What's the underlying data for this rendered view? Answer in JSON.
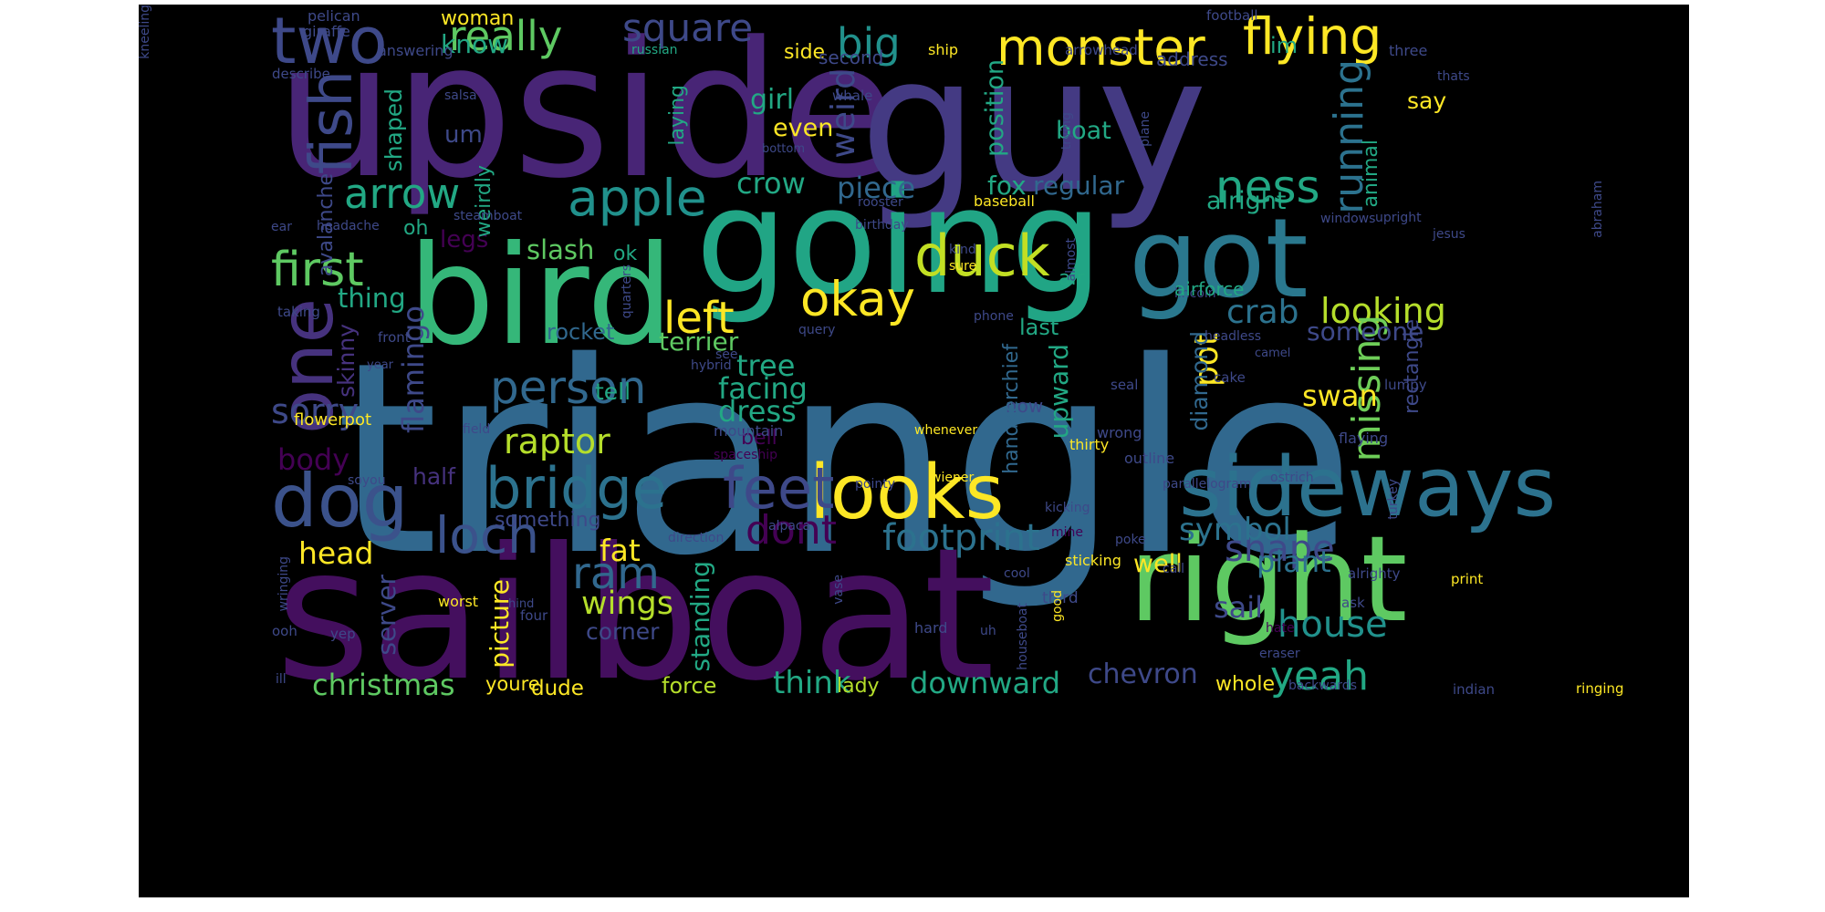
{
  "image": {
    "background_color": "#ffffff",
    "canvas_color": "#000000",
    "colormap": "viridis"
  },
  "words": [
    {
      "text": "triangle",
      "color": "#31688e",
      "vertical": false
    },
    {
      "text": "upside",
      "color": "#482576",
      "vertical": false
    },
    {
      "text": "sailboat",
      "color": "#440f5e",
      "vertical": false
    },
    {
      "text": "guy",
      "color": "#443a83",
      "vertical": false
    },
    {
      "text": "going",
      "color": "#21a585",
      "vertical": false
    },
    {
      "text": "bird",
      "color": "#35b779",
      "vertical": false
    },
    {
      "text": "got",
      "color": "#2a788e",
      "vertical": false
    },
    {
      "text": "right",
      "color": "#5ec962",
      "vertical": false
    },
    {
      "text": "sideways",
      "color": "#2c728e",
      "vertical": false
    },
    {
      "text": "looks",
      "color": "#fde725",
      "vertical": false
    },
    {
      "text": "feet",
      "color": "#3e4989",
      "vertical": false
    },
    {
      "text": "bridge",
      "color": "#2c728e",
      "vertical": false
    },
    {
      "text": "duck",
      "color": "#c2df23",
      "vertical": false
    },
    {
      "text": "left",
      "color": "#fde725",
      "vertical": false
    },
    {
      "text": "dog",
      "color": "#3b528b",
      "vertical": false
    },
    {
      "text": "one",
      "color": "#46327e",
      "vertical": true
    },
    {
      "text": "fish",
      "color": "#3e4989",
      "vertical": true
    },
    {
      "text": "two",
      "color": "#3e4989",
      "vertical": false
    },
    {
      "text": "person",
      "color": "#31688e",
      "vertical": false
    },
    {
      "text": "apple",
      "color": "#21918c",
      "vertical": false
    },
    {
      "text": "flying",
      "color": "#fde725",
      "vertical": false
    },
    {
      "text": "monster",
      "color": "#fde725",
      "vertical": false
    },
    {
      "text": "square",
      "color": "#3e4989",
      "vertical": false
    },
    {
      "text": "really",
      "color": "#5ec962",
      "vertical": false
    },
    {
      "text": "big",
      "color": "#21918c",
      "vertical": false
    },
    {
      "text": "ness",
      "color": "#22a884",
      "vertical": false
    },
    {
      "text": "okay",
      "color": "#fde725",
      "vertical": false
    },
    {
      "text": "loch",
      "color": "#3b528b",
      "vertical": false
    },
    {
      "text": "house",
      "color": "#21918c",
      "vertical": false
    },
    {
      "text": "yeah",
      "color": "#22a884",
      "vertical": false
    },
    {
      "text": "first",
      "color": "#5ec962",
      "vertical": false
    },
    {
      "text": "arrow",
      "color": "#22a884",
      "vertical": false
    },
    {
      "text": "footprint",
      "color": "#2c728e",
      "vertical": false
    },
    {
      "text": "dont",
      "color": "#440154",
      "vertical": false
    },
    {
      "text": "ram",
      "color": "#31688e",
      "vertical": false
    },
    {
      "text": "shape",
      "color": "#3e4989",
      "vertical": false
    },
    {
      "text": "looking",
      "color": "#b5de2b",
      "vertical": false
    },
    {
      "text": "crab",
      "color": "#2c728e",
      "vertical": false
    },
    {
      "text": "sorry",
      "color": "#3e4989",
      "vertical": false
    },
    {
      "text": "flamingo",
      "color": "#3e4989",
      "vertical": true
    },
    {
      "text": "weird",
      "color": "#3e4989",
      "vertical": true
    },
    {
      "text": "running",
      "color": "#2c728e",
      "vertical": true
    },
    {
      "text": "missing",
      "color": "#6ece58",
      "vertical": true
    },
    {
      "text": "pot",
      "color": "#fde725",
      "vertical": true
    },
    {
      "text": "raptor",
      "color": "#b5de2b",
      "vertical": false
    },
    {
      "text": "wings",
      "color": "#b5de2b",
      "vertical": false
    },
    {
      "text": "symbol",
      "color": "#2c728e",
      "vertical": false
    },
    {
      "text": "swan",
      "color": "#fde725",
      "vertical": false
    },
    {
      "text": "sail",
      "color": "#3e4989",
      "vertical": false
    },
    {
      "text": "think",
      "color": "#22a884",
      "vertical": false
    },
    {
      "text": "downward",
      "color": "#22a884",
      "vertical": false
    },
    {
      "text": "christmas",
      "color": "#5ec962",
      "vertical": false
    },
    {
      "text": "fat",
      "color": "#fde725",
      "vertical": false
    },
    {
      "text": "plant",
      "color": "#2c728e",
      "vertical": false
    },
    {
      "text": "tree",
      "color": "#22a884",
      "vertical": false
    },
    {
      "text": "facing",
      "color": "#22a884",
      "vertical": false
    },
    {
      "text": "dress",
      "color": "#22a884",
      "vertical": false
    },
    {
      "text": "body",
      "color": "#440154",
      "vertical": false
    },
    {
      "text": "head",
      "color": "#fde725",
      "vertical": false
    },
    {
      "text": "crow",
      "color": "#22a884",
      "vertical": false
    },
    {
      "text": "piece",
      "color": "#31688e",
      "vertical": false
    },
    {
      "text": "fox",
      "color": "#22a884",
      "vertical": false
    },
    {
      "text": "regular",
      "color": "#31688e",
      "vertical": false
    },
    {
      "text": "alright",
      "color": "#22a884",
      "vertical": false
    },
    {
      "text": "girl",
      "color": "#22a884",
      "vertical": false
    },
    {
      "text": "even",
      "color": "#fde725",
      "vertical": false
    },
    {
      "text": "thing",
      "color": "#22a884",
      "vertical": false
    },
    {
      "text": "terrier",
      "color": "#5ec962",
      "vertical": false
    },
    {
      "text": "someone",
      "color": "#3e4989",
      "vertical": false
    },
    {
      "text": "chevron",
      "color": "#3e4989",
      "vertical": false
    },
    {
      "text": "lady",
      "color": "#b5de2b",
      "vertical": false
    },
    {
      "text": "force",
      "color": "#b5de2b",
      "vertical": false
    },
    {
      "text": "dude",
      "color": "#fde725",
      "vertical": false
    },
    {
      "text": "youre",
      "color": "#fde725",
      "vertical": false
    },
    {
      "text": "whole",
      "color": "#fde725",
      "vertical": false
    },
    {
      "text": "corner",
      "color": "#3e4989",
      "vertical": false
    },
    {
      "text": "standing",
      "color": "#22a884",
      "vertical": true
    },
    {
      "text": "picture",
      "color": "#fde725",
      "vertical": true
    },
    {
      "text": "server",
      "color": "#3e4989",
      "vertical": true
    },
    {
      "text": "half",
      "color": "#46327e",
      "vertical": false
    },
    {
      "text": "skinny",
      "color": "#46327e",
      "vertical": true
    },
    {
      "text": "slash",
      "color": "#5ec962",
      "vertical": false
    },
    {
      "text": "legs",
      "color": "#440154",
      "vertical": false
    },
    {
      "text": "rocket",
      "color": "#31688e",
      "vertical": false
    },
    {
      "text": "tell",
      "color": "#22a884",
      "vertical": false
    },
    {
      "text": "bell",
      "color": "#440154",
      "vertical": false
    },
    {
      "text": "now",
      "color": "#3e4989",
      "vertical": false
    },
    {
      "text": "upward",
      "color": "#22a884",
      "vertical": true
    },
    {
      "text": "handkerchief",
      "color": "#31688e",
      "vertical": true
    },
    {
      "text": "diamond",
      "color": "#31688e",
      "vertical": true
    },
    {
      "text": "rectangle",
      "color": "#3e4989",
      "vertical": true
    },
    {
      "text": "animal",
      "color": "#22a884",
      "vertical": true
    },
    {
      "text": "well",
      "color": "#fde725",
      "vertical": false
    },
    {
      "text": "im",
      "color": "#22a884",
      "vertical": false
    },
    {
      "text": "know",
      "color": "#22a884",
      "vertical": false
    },
    {
      "text": "woman",
      "color": "#fde725",
      "vertical": false
    },
    {
      "text": "shaped",
      "color": "#22a884",
      "vertical": true
    },
    {
      "text": "weirdly",
      "color": "#22a884",
      "vertical": true
    },
    {
      "text": "um",
      "color": "#3e4989",
      "vertical": false
    },
    {
      "text": "laying",
      "color": "#22a884",
      "vertical": true
    },
    {
      "text": "position",
      "color": "#22a884",
      "vertical": true
    },
    {
      "text": "boat",
      "color": "#22a884",
      "vertical": false
    },
    {
      "text": "oh",
      "color": "#22a884",
      "vertical": false
    },
    {
      "text": "ok",
      "color": "#22a884",
      "vertical": false
    },
    {
      "text": "air",
      "color": "#22a884",
      "vertical": false
    },
    {
      "text": "last",
      "color": "#22a884",
      "vertical": false
    },
    {
      "text": "side",
      "color": "#fde725",
      "vertical": false
    },
    {
      "text": "second",
      "color": "#3e4989",
      "vertical": false
    },
    {
      "text": "address",
      "color": "#3e4989",
      "vertical": false
    },
    {
      "text": "avalanche",
      "color": "#3e4989",
      "vertical": true
    },
    {
      "text": "something",
      "color": "#3e4989",
      "vertical": false
    },
    {
      "text": "pelican",
      "color": "#3e4989",
      "vertical": false
    },
    {
      "text": "giraffe",
      "color": "#3e4989",
      "vertical": false
    },
    {
      "text": "answering",
      "color": "#3e4989",
      "vertical": false
    },
    {
      "text": "russian",
      "color": "#22a884",
      "vertical": false
    },
    {
      "text": "ship",
      "color": "#fde725",
      "vertical": false
    },
    {
      "text": "football",
      "color": "#3e4989",
      "vertical": false
    },
    {
      "text": "arrowhead",
      "color": "#3e4989",
      "vertical": false
    },
    {
      "text": "three",
      "color": "#3e4989",
      "vertical": false
    },
    {
      "text": "thats",
      "color": "#3e4989",
      "vertical": false
    },
    {
      "text": "describe",
      "color": "#3e4989",
      "vertical": false
    },
    {
      "text": "whale",
      "color": "#3e4989",
      "vertical": false
    },
    {
      "text": "salsa",
      "color": "#3e4989",
      "vertical": false
    },
    {
      "text": "say",
      "color": "#fde725",
      "vertical": false
    },
    {
      "text": "bottom",
      "color": "#3e4989",
      "vertical": false
    },
    {
      "text": "rooster",
      "color": "#3e4989",
      "vertical": false
    },
    {
      "text": "baseball",
      "color": "#fde725",
      "vertical": false
    },
    {
      "text": "steamboat",
      "color": "#3e4989",
      "vertical": false
    },
    {
      "text": "birthday",
      "color": "#3e4989",
      "vertical": false
    },
    {
      "text": "headache",
      "color": "#3e4989",
      "vertical": false
    },
    {
      "text": "ear",
      "color": "#3e4989",
      "vertical": false
    },
    {
      "text": "taking",
      "color": "#3e4989",
      "vertical": false
    },
    {
      "text": "front",
      "color": "#3e4989",
      "vertical": false
    },
    {
      "text": "kind",
      "color": "#3e4989",
      "vertical": false
    },
    {
      "text": "sure",
      "color": "#fde725",
      "vertical": false
    },
    {
      "text": "phone",
      "color": "#3e4989",
      "vertical": false
    },
    {
      "text": "query",
      "color": "#3e4989",
      "vertical": false
    },
    {
      "text": "upright",
      "color": "#3e4989",
      "vertical": false
    },
    {
      "text": "windows",
      "color": "#3e4989",
      "vertical": false
    },
    {
      "text": "jesus",
      "color": "#3e4989",
      "vertical": false
    },
    {
      "text": "lincoln",
      "color": "#3e4989",
      "vertical": false
    },
    {
      "text": "airforce",
      "color": "#22a884",
      "vertical": false
    },
    {
      "text": "headless",
      "color": "#3e4989",
      "vertical": false
    },
    {
      "text": "camel",
      "color": "#3e4989",
      "vertical": false
    },
    {
      "text": "see",
      "color": "#3e4989",
      "vertical": false
    },
    {
      "text": "year",
      "color": "#3e4989",
      "vertical": false
    },
    {
      "text": "hybrid",
      "color": "#3e4989",
      "vertical": false
    },
    {
      "text": "seal",
      "color": "#3e4989",
      "vertical": false
    },
    {
      "text": "cake",
      "color": "#3e4989",
      "vertical": false
    },
    {
      "text": "lumpy",
      "color": "#3e4989",
      "vertical": false
    },
    {
      "text": "flowerpot",
      "color": "#fde725",
      "vertical": false
    },
    {
      "text": "field",
      "color": "#3e4989",
      "vertical": false
    },
    {
      "text": "mountain",
      "color": "#3e4989",
      "vertical": false
    },
    {
      "text": "whenever",
      "color": "#fde725",
      "vertical": false
    },
    {
      "text": "wrong",
      "color": "#3e4989",
      "vertical": false
    },
    {
      "text": "thirty",
      "color": "#fde725",
      "vertical": false
    },
    {
      "text": "flaying",
      "color": "#3e4989",
      "vertical": false
    },
    {
      "text": "spaceship",
      "color": "#440154",
      "vertical": false
    },
    {
      "text": "outline",
      "color": "#3e4989",
      "vertical": false
    },
    {
      "text": "soyou",
      "color": "#3e4989",
      "vertical": false
    },
    {
      "text": "pointy",
      "color": "#3e4989",
      "vertical": false
    },
    {
      "text": "wiener",
      "color": "#fde725",
      "vertical": false
    },
    {
      "text": "parallelogram",
      "color": "#3e4989",
      "vertical": false
    },
    {
      "text": "ostrich",
      "color": "#3e4989",
      "vertical": false
    },
    {
      "text": "kicking",
      "color": "#3e4989",
      "vertical": false
    },
    {
      "text": "alpaca",
      "color": "#3e4989",
      "vertical": false
    },
    {
      "text": "direction",
      "color": "#3e4989",
      "vertical": false
    },
    {
      "text": "mine",
      "color": "#440154",
      "vertical": false
    },
    {
      "text": "poke",
      "color": "#3e4989",
      "vertical": false
    },
    {
      "text": "sticking",
      "color": "#fde725",
      "vertical": false
    },
    {
      "text": "cool",
      "color": "#3e4989",
      "vertical": false
    },
    {
      "text": "call",
      "color": "#3e4989",
      "vertical": false
    },
    {
      "text": "alrighty",
      "color": "#3e4989",
      "vertical": false
    },
    {
      "text": "print",
      "color": "#fde725",
      "vertical": false
    },
    {
      "text": "worst",
      "color": "#fde725",
      "vertical": false
    },
    {
      "text": "hind",
      "color": "#3e4989",
      "vertical": false
    },
    {
      "text": "four",
      "color": "#3e4989",
      "vertical": false
    },
    {
      "text": "third",
      "color": "#3e4989",
      "vertical": false
    },
    {
      "text": "ask",
      "color": "#3e4989",
      "vertical": false
    },
    {
      "text": "hate",
      "color": "#440154",
      "vertical": false
    },
    {
      "text": "ooh",
      "color": "#3e4989",
      "vertical": false
    },
    {
      "text": "yep",
      "color": "#3e4989",
      "vertical": false
    },
    {
      "text": "hard",
      "color": "#3e4989",
      "vertical": false
    },
    {
      "text": "uh",
      "color": "#3e4989",
      "vertical": false
    },
    {
      "text": "eraser",
      "color": "#3e4989",
      "vertical": false
    },
    {
      "text": "backwards",
      "color": "#3e4989",
      "vertical": false
    },
    {
      "text": "indian",
      "color": "#3e4989",
      "vertical": false
    },
    {
      "text": "ringing",
      "color": "#fde725",
      "vertical": false
    },
    {
      "text": "ill",
      "color": "#3e4989",
      "vertical": false
    },
    {
      "text": "wringing",
      "color": "#3e4989",
      "vertical": true
    },
    {
      "text": "quarters",
      "color": "#3e4989",
      "vertical": true
    },
    {
      "text": "almost",
      "color": "#3e4989",
      "vertical": true
    },
    {
      "text": "trying",
      "color": "#3e4989",
      "vertical": true
    },
    {
      "text": "plane",
      "color": "#3e4989",
      "vertical": true
    },
    {
      "text": "abraham",
      "color": "#3e4989",
      "vertical": true
    },
    {
      "text": "turkey",
      "color": "#3e4989",
      "vertical": true
    },
    {
      "text": "vase",
      "color": "#3e4989",
      "vertical": true
    },
    {
      "text": "houseboat",
      "color": "#3e4989",
      "vertical": true
    },
    {
      "text": "good",
      "color": "#fde725",
      "vertical": true
    },
    {
      "text": "kneeling",
      "color": "#3e4989",
      "vertical": true
    }
  ]
}
